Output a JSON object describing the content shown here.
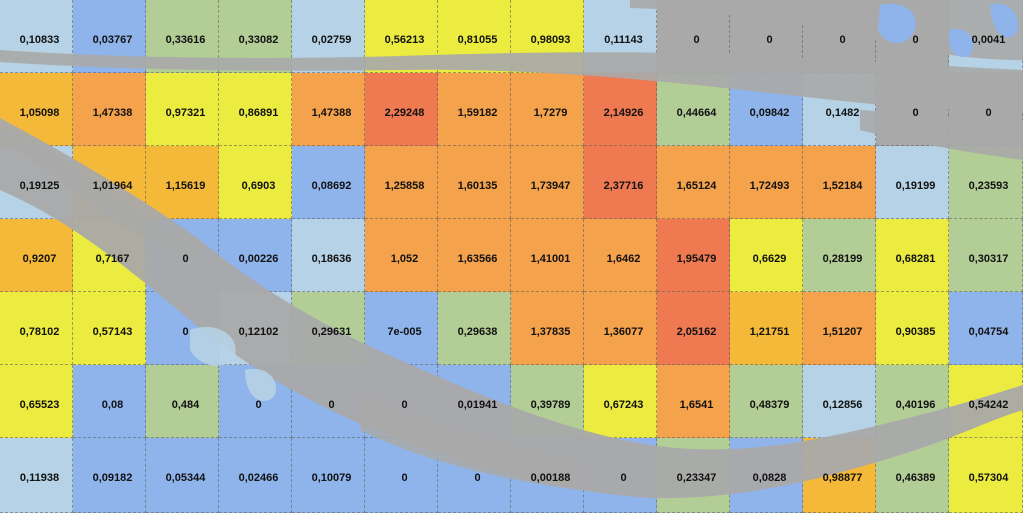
{
  "colors": {
    "blue": "#8fb4ec",
    "lightblue": "#b6d2e6",
    "green": "#b3cd96",
    "yellow": "#ecec40",
    "gold": "#f5b93a",
    "orange": "#f5a24c",
    "red": "#ef7a52",
    "water": "#a9a9a9"
  },
  "grid": {
    "rows": [
      {
        "cells": [
          {
            "value": "0,10833",
            "color": "lightblue"
          },
          {
            "value": "0,03767",
            "color": "blue"
          },
          {
            "value": "0,33616",
            "color": "green"
          },
          {
            "value": "0,33082",
            "color": "green"
          },
          {
            "value": "0,02759",
            "color": "lightblue"
          },
          {
            "value": "0,56213",
            "color": "yellow"
          },
          {
            "value": "0,81055",
            "color": "yellow"
          },
          {
            "value": "0,98093",
            "color": "yellow"
          },
          {
            "value": "0,11143",
            "color": "lightblue"
          },
          {
            "value": "0",
            "color": "water"
          },
          {
            "value": "0",
            "color": "water"
          },
          {
            "value": "0",
            "color": "water"
          },
          {
            "value": "0",
            "color": "water"
          },
          {
            "value": "0,0041",
            "color": "lightblue"
          }
        ]
      },
      {
        "cells": [
          {
            "value": "1,05098",
            "color": "gold"
          },
          {
            "value": "1,47338",
            "color": "orange"
          },
          {
            "value": "0,97321",
            "color": "yellow"
          },
          {
            "value": "0,86891",
            "color": "yellow"
          },
          {
            "value": "1,47388",
            "color": "orange"
          },
          {
            "value": "2,29248",
            "color": "red"
          },
          {
            "value": "1,59182",
            "color": "orange"
          },
          {
            "value": "1,7279",
            "color": "orange"
          },
          {
            "value": "2,14926",
            "color": "red"
          },
          {
            "value": "0,44664",
            "color": "green"
          },
          {
            "value": "0,09842",
            "color": "blue"
          },
          {
            "value": "0,1482",
            "color": "lightblue"
          },
          {
            "value": "0",
            "color": "water"
          },
          {
            "value": "0",
            "color": "water"
          }
        ]
      },
      {
        "cells": [
          {
            "value": "0,19125",
            "color": "lightblue"
          },
          {
            "value": "1,01964",
            "color": "gold"
          },
          {
            "value": "1,15619",
            "color": "gold"
          },
          {
            "value": "0,6903",
            "color": "yellow"
          },
          {
            "value": "0,08692",
            "color": "blue"
          },
          {
            "value": "1,25858",
            "color": "orange"
          },
          {
            "value": "1,60135",
            "color": "orange"
          },
          {
            "value": "1,73947",
            "color": "orange"
          },
          {
            "value": "2,37716",
            "color": "red"
          },
          {
            "value": "1,65124",
            "color": "orange"
          },
          {
            "value": "1,72493",
            "color": "orange"
          },
          {
            "value": "1,52184",
            "color": "orange"
          },
          {
            "value": "0,19199",
            "color": "lightblue"
          },
          {
            "value": "0,23593",
            "color": "green"
          }
        ]
      },
      {
        "cells": [
          {
            "value": "0,9207",
            "color": "gold"
          },
          {
            "value": "0,7167",
            "color": "yellow"
          },
          {
            "value": "0",
            "color": "blue"
          },
          {
            "value": "0,00226",
            "color": "blue"
          },
          {
            "value": "0,18636",
            "color": "lightblue"
          },
          {
            "value": "1,052",
            "color": "orange"
          },
          {
            "value": "1,63566",
            "color": "orange"
          },
          {
            "value": "1,41001",
            "color": "orange"
          },
          {
            "value": "1,6462",
            "color": "orange"
          },
          {
            "value": "1,95479",
            "color": "red"
          },
          {
            "value": "0,6629",
            "color": "yellow"
          },
          {
            "value": "0,28199",
            "color": "green"
          },
          {
            "value": "0,68281",
            "color": "yellow"
          },
          {
            "value": "0,30317",
            "color": "green"
          }
        ]
      },
      {
        "cells": [
          {
            "value": "0,78102",
            "color": "yellow"
          },
          {
            "value": "0,57143",
            "color": "yellow"
          },
          {
            "value": "0",
            "color": "blue"
          },
          {
            "value": "0,12102",
            "color": "lightblue"
          },
          {
            "value": "0,29631",
            "color": "green"
          },
          {
            "value": "7e-005",
            "color": "blue"
          },
          {
            "value": "0,29638",
            "color": "green"
          },
          {
            "value": "1,37835",
            "color": "orange"
          },
          {
            "value": "1,36077",
            "color": "orange"
          },
          {
            "value": "2,05162",
            "color": "red"
          },
          {
            "value": "1,21751",
            "color": "gold"
          },
          {
            "value": "1,51207",
            "color": "orange"
          },
          {
            "value": "0,90385",
            "color": "yellow"
          },
          {
            "value": "0,04754",
            "color": "blue"
          }
        ]
      },
      {
        "cells": [
          {
            "value": "0,65523",
            "color": "yellow"
          },
          {
            "value": "0,08",
            "color": "blue"
          },
          {
            "value": "0,484",
            "color": "green"
          },
          {
            "value": "0",
            "color": "blue"
          },
          {
            "value": "0",
            "color": "blue"
          },
          {
            "value": "0",
            "color": "blue"
          },
          {
            "value": "0,01941",
            "color": "blue"
          },
          {
            "value": "0,39789",
            "color": "green"
          },
          {
            "value": "0,67243",
            "color": "yellow"
          },
          {
            "value": "1,6541",
            "color": "orange"
          },
          {
            "value": "0,48379",
            "color": "green"
          },
          {
            "value": "0,12856",
            "color": "lightblue"
          },
          {
            "value": "0,40196",
            "color": "green"
          },
          {
            "value": "0,54242",
            "color": "yellow"
          }
        ]
      },
      {
        "cells": [
          {
            "value": "0,11938",
            "color": "lightblue"
          },
          {
            "value": "0,09182",
            "color": "blue"
          },
          {
            "value": "0,05344",
            "color": "blue"
          },
          {
            "value": "0,02466",
            "color": "blue"
          },
          {
            "value": "0,10079",
            "color": "blue"
          },
          {
            "value": "0",
            "color": "blue"
          },
          {
            "value": "0",
            "color": "blue"
          },
          {
            "value": "0,00188",
            "color": "blue"
          },
          {
            "value": "0",
            "color": "blue"
          },
          {
            "value": "0,23347",
            "color": "green"
          },
          {
            "value": "0,0828",
            "color": "blue"
          },
          {
            "value": "0,98877",
            "color": "gold"
          },
          {
            "value": "0,46389",
            "color": "green"
          },
          {
            "value": "0,57304",
            "color": "yellow"
          }
        ]
      }
    ]
  }
}
